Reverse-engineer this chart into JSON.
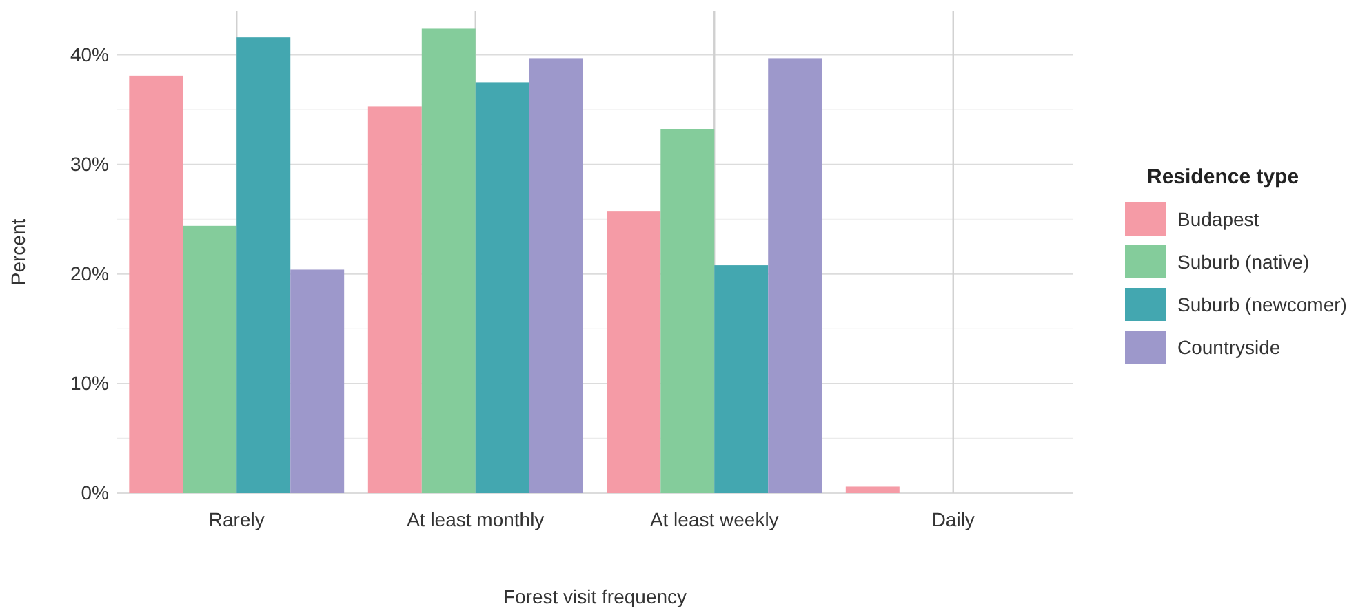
{
  "chart_data": {
    "type": "bar",
    "xlabel": "Forest visit frequency",
    "ylabel": "Percent",
    "legend_title": "Residence type",
    "legend": "right",
    "grid": true,
    "categories": [
      "Rarely",
      "At least monthly",
      "At least weekly",
      "Daily"
    ],
    "series": [
      {
        "name": "Budapest",
        "color": "#f59ba6",
        "values": [
          38.1,
          35.3,
          25.7,
          0.6
        ]
      },
      {
        "name": "Suburb (native)",
        "color": "#84cc9b",
        "values": [
          24.4,
          42.4,
          33.2,
          0
        ]
      },
      {
        "name": "Suburb (newcomer)",
        "color": "#43a7b0",
        "values": [
          41.6,
          37.5,
          20.8,
          0
        ]
      },
      {
        "name": "Countryside",
        "color": "#9d98cb",
        "values": [
          20.4,
          39.7,
          39.7,
          0
        ]
      }
    ],
    "ylim": [
      0,
      44
    ],
    "yticks": [
      {
        "value": 0,
        "label": "0%"
      },
      {
        "value": 5,
        "label": null
      },
      {
        "value": 10,
        "label": "10%"
      },
      {
        "value": 15,
        "label": null
      },
      {
        "value": 20,
        "label": "20%"
      },
      {
        "value": 25,
        "label": null
      },
      {
        "value": 30,
        "label": "30%"
      },
      {
        "value": 35,
        "label": null
      },
      {
        "value": 40,
        "label": "40%"
      }
    ]
  }
}
